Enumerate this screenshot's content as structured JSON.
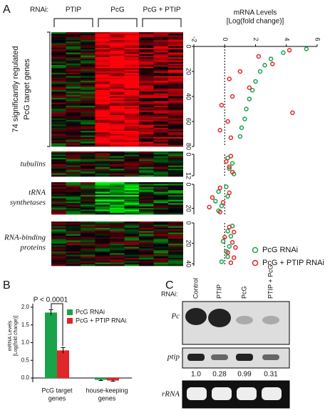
{
  "panel_labels": [
    "A",
    "B",
    "C"
  ],
  "heatmap": {
    "rnai_label": "RNAi:",
    "columns": [
      "PTIP",
      "PcG",
      "PcG + PTIP"
    ],
    "groups": [
      [
        "74 significantly regulated",
        "PcG target genes"
      ],
      [
        "tubulins"
      ],
      [
        "tRNA",
        "synthetases"
      ],
      [
        "RNA-binding",
        "proteins"
      ]
    ]
  },
  "chart_data": [
    {
      "type": "scatter",
      "xlabel": [
        "mRNA Levels",
        "[Log(fold change)]"
      ],
      "xlim": [
        -2,
        6
      ],
      "xticks": [
        -2,
        0,
        2,
        4,
        6
      ],
      "ylim": [
        0,
        80
      ],
      "yticks": [
        0,
        20,
        40,
        60,
        80
      ],
      "series": [
        {
          "name": "PcG RNAi",
          "color": "#1aa34a",
          "x": [
            5.3,
            3.8,
            3.0,
            2.6,
            2.3,
            2.0,
            1.8,
            1.6,
            1.4,
            1.3,
            1.1,
            1.0
          ],
          "values": [
            2,
            5,
            10,
            15,
            20,
            28,
            35,
            42,
            50,
            58,
            65,
            72
          ]
        },
        {
          "name": "PcG + PTIP RNAi",
          "color": "#e0262b",
          "x": [
            4.2,
            2.2,
            3.1,
            1.0,
            0.3,
            1.6,
            0.5,
            -0.2,
            4.4,
            0.2,
            -0.3,
            0.4
          ],
          "values": [
            3,
            8,
            14,
            20,
            26,
            33,
            40,
            47,
            53,
            60,
            67,
            73
          ]
        }
      ]
    },
    {
      "type": "scatter",
      "xlim": [
        -2,
        6
      ],
      "ylim": [
        0,
        12
      ],
      "yticks": [
        0,
        12
      ],
      "series": [
        {
          "name": "PcG RNAi",
          "color": "#1aa34a",
          "x": [
            0.2,
            0.5,
            0.3,
            0.6
          ],
          "values": [
            2,
            5,
            8,
            11
          ]
        },
        {
          "name": "PcG + PTIP RNAi",
          "color": "#e0262b",
          "x": [
            0.4,
            0.1,
            0.3,
            0.5
          ],
          "values": [
            1,
            4,
            7,
            10
          ]
        }
      ]
    },
    {
      "type": "scatter",
      "xlim": [
        -2,
        6
      ],
      "ylim": [
        0,
        25
      ],
      "yticks": [
        0,
        20
      ],
      "series": [
        {
          "name": "PcG RNAi",
          "color": "#1aa34a",
          "x": [
            0.1,
            -0.4,
            0.2,
            -0.6,
            -0.2,
            -0.4
          ],
          "values": [
            2,
            6,
            10,
            14,
            18,
            22
          ]
        },
        {
          "name": "PcG + PTIP RNAi",
          "color": "#e0262b",
          "x": [
            -0.3,
            0.3,
            -0.8,
            -0.1,
            -1.0,
            -0.3
          ],
          "values": [
            3,
            7,
            11,
            15,
            19,
            23
          ]
        }
      ]
    },
    {
      "type": "scatter",
      "xlim": [
        -2,
        6
      ],
      "ylim": [
        0,
        42
      ],
      "yticks": [
        0,
        20,
        40
      ],
      "legend": "lower right",
      "series": [
        {
          "name": "PcG RNAi",
          "color": "#1aa34a",
          "x": [
            0.5,
            0.2,
            0.4,
            -0.1,
            0.3,
            0.1,
            0.2,
            -0.2
          ],
          "values": [
            3,
            8,
            13,
            18,
            23,
            28,
            33,
            38
          ]
        },
        {
          "name": "PcG + PTIP RNAi",
          "color": "#e0262b",
          "x": [
            0.3,
            0.6,
            0.0,
            0.5,
            0.7,
            0.2,
            0.6,
            0.4
          ],
          "values": [
            4,
            9,
            14,
            19,
            24,
            29,
            34,
            39
          ]
        }
      ]
    },
    {
      "type": "bar",
      "ylabel": [
        "mRNA Levels",
        "[Log(fold change)]"
      ],
      "annotation": "P < 0.0001",
      "categories": [
        [
          "PcG target",
          "genes"
        ],
        [
          "house-keeping",
          "genes"
        ]
      ],
      "ylim": [
        -0.12,
        2.1
      ],
      "yticks": [
        {
          "value": 0,
          "label": "0.0"
        },
        {
          "value": 0.5,
          "label": "0.5"
        },
        {
          "value": 1,
          "label": "1.0"
        },
        {
          "value": 1.5,
          "label": "1.5"
        },
        {
          "value": 2,
          "label": "2.0"
        }
      ],
      "legend": "upper right",
      "series": [
        {
          "name": "PcG RNAi",
          "color": "#1aa34a",
          "values": [
            1.85,
            -0.05
          ],
          "errors": [
            0.08,
            0.02
          ]
        },
        {
          "name": "PcG + PTIP RNAi",
          "color": "#e0262b",
          "values": [
            0.78,
            -0.07
          ],
          "errors": [
            0.08,
            0.02
          ]
        }
      ]
    }
  ],
  "blot": {
    "rnai_label": "RNAi:",
    "lanes": [
      "Control",
      "PTIP",
      "PcG",
      "PTIP + PcG"
    ],
    "rows": [
      "Pc",
      "ptip",
      "rRNA"
    ],
    "quantification": [
      "1.0",
      "0.28",
      "0.99",
      "0.31"
    ]
  }
}
